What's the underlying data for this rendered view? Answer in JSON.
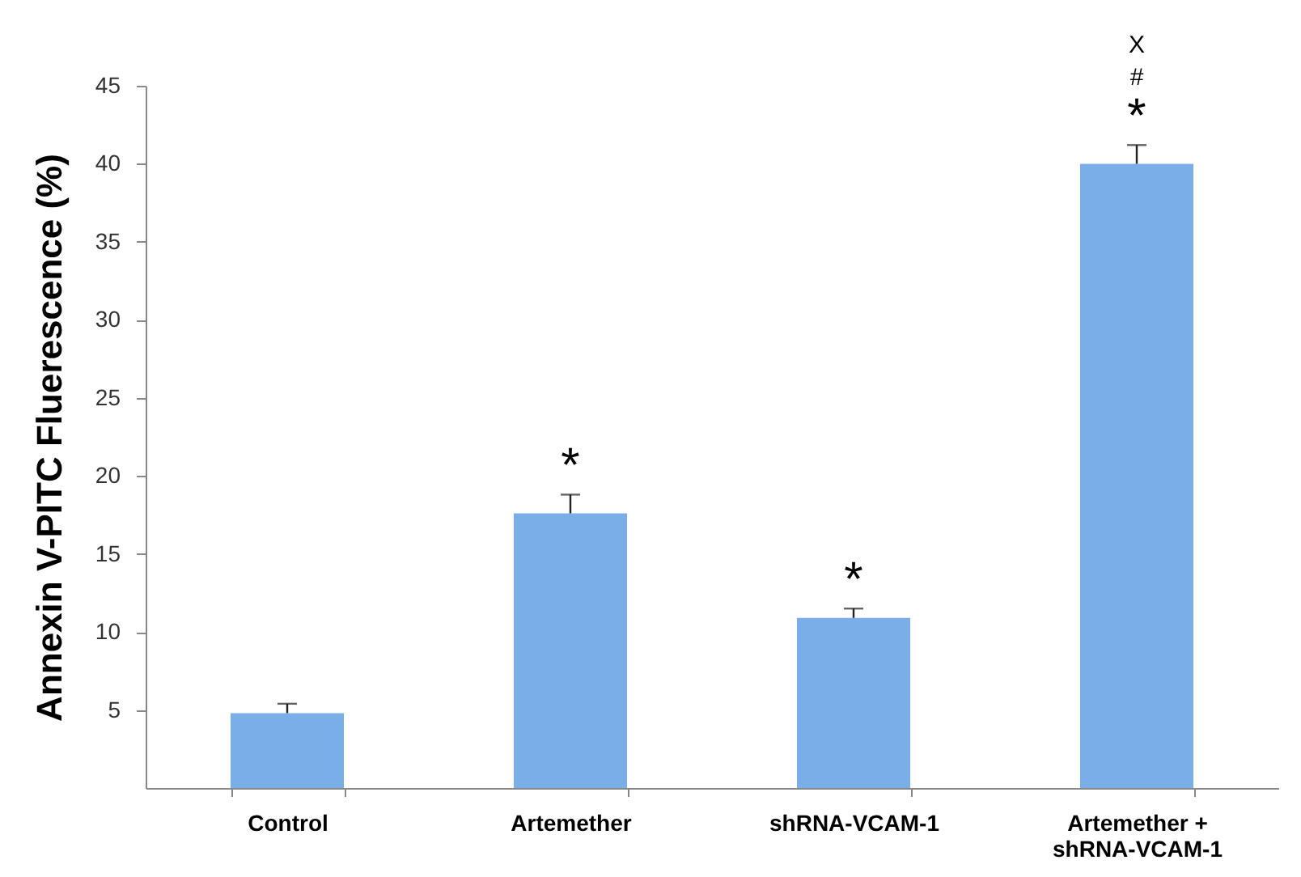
{
  "chart_data": {
    "type": "bar",
    "ylabel": "Annexin V-PITC Fluerescence (%)",
    "categories": [
      "Control",
      "Artemether",
      "shRNA-VCAM-1",
      "Artemether +\nshRNA-VCAM-1"
    ],
    "values": [
      4.8,
      17.6,
      10.9,
      40.0
    ],
    "errors": [
      0.6,
      1.2,
      0.6,
      1.2
    ],
    "color": "#7aaee8",
    "ylim": [
      0,
      45
    ],
    "yticks": [
      5,
      10,
      15,
      20,
      25,
      30,
      35,
      40,
      45
    ],
    "grid": false,
    "annotations": [
      {
        "text": "*",
        "x": "Artemether",
        "y": 17.6
      },
      {
        "text": "*",
        "x": "shRNA-VCAM-1",
        "y": 10.9
      },
      {
        "text": "*",
        "x": "Artemether +\nshRNA-VCAM-1",
        "y": 40.0
      },
      {
        "text": "#",
        "x": "Artemether +\nshRNA-VCAM-1",
        "y": 40.0
      },
      "X"
    ]
  }
}
